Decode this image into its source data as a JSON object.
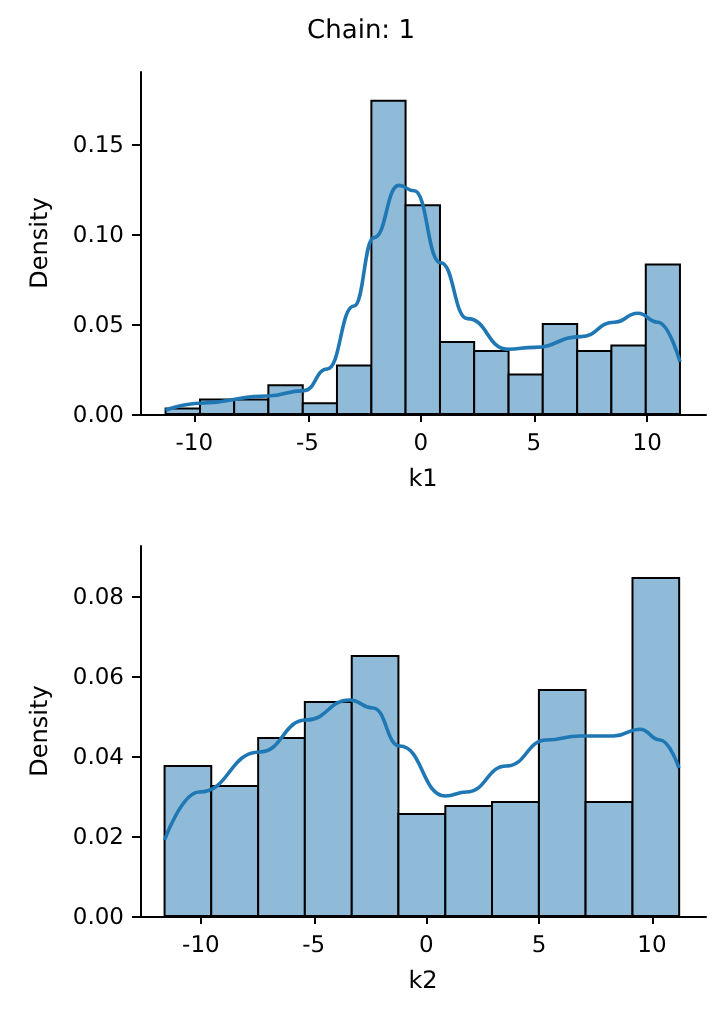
{
  "chart_data": [
    {
      "type": "histogram",
      "title": "Chain: 1",
      "xlabel": "k1",
      "ylabel": "Density",
      "xlim": [
        -12.4,
        12.6
      ],
      "ylim": [
        0,
        0.19
      ],
      "xticks": [
        -10,
        -5,
        0,
        5,
        10
      ],
      "yticks": [
        {
          "value": 0,
          "label": "0.00"
        },
        {
          "value": 0.05,
          "label": "0.05"
        },
        {
          "value": 0.1,
          "label": "0.10"
        },
        {
          "value": 0.15,
          "label": "0.15"
        }
      ],
      "grid": false,
      "series": [
        {
          "color": "#8fbbd9",
          "bins": [
            -11.27,
            -9.75,
            -8.24,
            -6.73,
            -5.21,
            -3.7,
            -2.18,
            -0.67,
            0.85,
            2.36,
            3.88,
            5.39,
            6.91,
            8.42,
            9.94,
            11.45
          ],
          "values": [
            0.003,
            0.008,
            0.008,
            0.016,
            0.006,
            0.027,
            0.174,
            0.116,
            0.04,
            0.035,
            0.022,
            0.05,
            0.035,
            0.038,
            0.083
          ]
        },
        {
          "type": "line",
          "color": "#1f77b4",
          "x": [
            -11.27,
            -9.73,
            -6.78,
            -5.16,
            -4.13,
            -2.95,
            -2.06,
            -0.97,
            -0.29,
            0.88,
            2.06,
            3.83,
            5.01,
            7.08,
            8.55,
            9.59,
            10.47,
            11.45
          ],
          "values": [
            0.002,
            0.006,
            0.01,
            0.013,
            0.025,
            0.06,
            0.098,
            0.127,
            0.124,
            0.084,
            0.053,
            0.036,
            0.037,
            0.043,
            0.051,
            0.056,
            0.051,
            0.029
          ]
        }
      ]
    },
    {
      "type": "histogram",
      "xlabel": "k2",
      "ylabel": "Density",
      "xlim": [
        -12.7,
        12.4
      ],
      "ylim": [
        0,
        0.0925
      ],
      "xticks": [
        -10,
        -5,
        0,
        5,
        10
      ],
      "yticks": [
        {
          "value": 0,
          "label": "0.00"
        },
        {
          "value": 0.02,
          "label": "0.02"
        },
        {
          "value": 0.04,
          "label": "0.04"
        },
        {
          "value": 0.06,
          "label": "0.06"
        },
        {
          "value": 0.08,
          "label": "0.08"
        }
      ],
      "grid": false,
      "series": [
        {
          "color": "#8fbbd9",
          "bins": [
            -11.61,
            -9.54,
            -7.46,
            -5.39,
            -3.31,
            -1.24,
            0.84,
            2.91,
            4.99,
            7.06,
            9.14,
            11.21
          ],
          "values": [
            0.0375,
            0.0325,
            0.0445,
            0.0535,
            0.065,
            0.0255,
            0.0275,
            0.0285,
            0.0565,
            0.0285,
            0.0845
          ]
        },
        {
          "type": "line",
          "color": "#1f77b4",
          "x": [
            -11.61,
            -10.07,
            -7.4,
            -5.33,
            -3.4,
            -2.37,
            -1.18,
            0.83,
            1.78,
            3.55,
            5.33,
            6.8,
            8.3,
            9.47,
            10.36,
            11.2
          ],
          "values": [
            0.019,
            0.031,
            0.041,
            0.049,
            0.054,
            0.052,
            0.0425,
            0.03,
            0.031,
            0.0375,
            0.044,
            0.045,
            0.045,
            0.0467,
            0.044,
            0.037
          ]
        }
      ]
    }
  ]
}
